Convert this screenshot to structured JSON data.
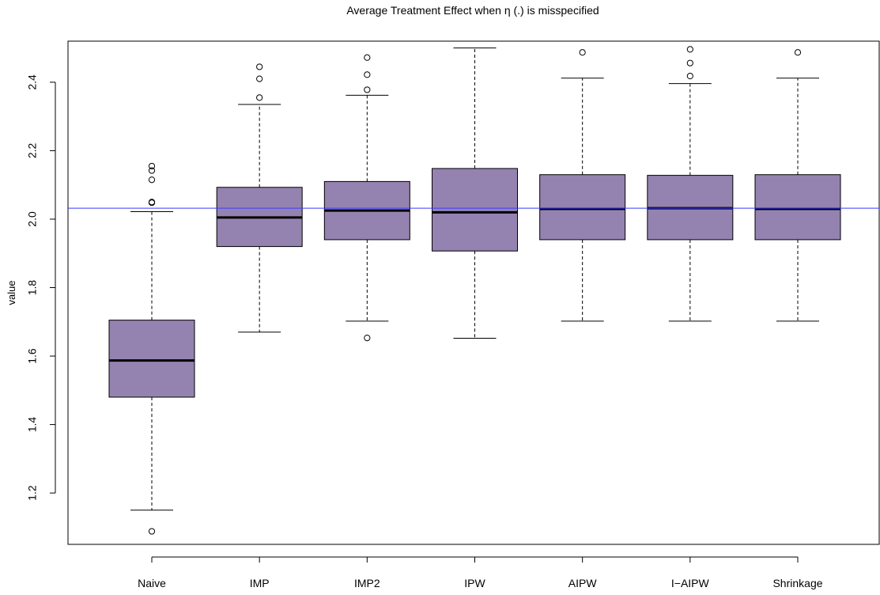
{
  "chart_data": {
    "type": "boxplot",
    "title": "Average Treatment Effect when η (.) is misspecified",
    "xlabel": "",
    "ylabel": "value",
    "ylim": [
      1.05,
      2.52
    ],
    "yticks": [
      1.2,
      1.4,
      1.6,
      1.8,
      2.0,
      2.2,
      2.4
    ],
    "ytick_labels": [
      "1.2",
      "1.4",
      "1.6",
      "1.8",
      "2.0",
      "2.2",
      "2.4"
    ],
    "categories": [
      "Naive",
      "IMP",
      "IMP2",
      "IPW",
      "AIPW",
      "I−AIPW",
      "Shrinkage"
    ],
    "boxes": [
      {
        "name": "Naive",
        "whisker_low": 1.15,
        "q1": 1.48,
        "median": 1.587,
        "q3": 1.705,
        "whisker_high": 2.022,
        "outliers": [
          2.155,
          2.142,
          2.115,
          2.05,
          2.048,
          1.088
        ]
      },
      {
        "name": "IMP",
        "whisker_low": 1.67,
        "q1": 1.92,
        "median": 2.005,
        "q3": 2.093,
        "whisker_high": 2.335,
        "outliers": [
          2.445,
          2.41,
          2.355
        ]
      },
      {
        "name": "IMP2",
        "whisker_low": 1.702,
        "q1": 1.94,
        "median": 2.025,
        "q3": 2.11,
        "whisker_high": 2.362,
        "outliers": [
          2.472,
          2.422,
          2.378,
          1.653
        ]
      },
      {
        "name": "IPW",
        "whisker_low": 1.652,
        "q1": 1.907,
        "median": 2.02,
        "q3": 2.148,
        "whisker_high": 2.5,
        "outliers": []
      },
      {
        "name": "AIPW",
        "whisker_low": 1.702,
        "q1": 1.94,
        "median": 2.03,
        "q3": 2.13,
        "whisker_high": 2.412,
        "outliers": [
          2.487
        ]
      },
      {
        "name": "I−AIPW",
        "whisker_low": 1.702,
        "q1": 1.94,
        "median": 2.032,
        "q3": 2.128,
        "whisker_high": 2.396,
        "outliers": [
          2.496,
          2.456,
          2.418
        ]
      },
      {
        "name": "Shrinkage",
        "whisker_low": 1.702,
        "q1": 1.94,
        "median": 2.03,
        "q3": 2.13,
        "whisker_high": 2.412,
        "outliers": [
          2.487
        ]
      }
    ],
    "reference_line": {
      "y": 2.032,
      "color": "#3b3bff"
    },
    "box_fill": "#9483b0",
    "grid": false,
    "legend": "none"
  }
}
